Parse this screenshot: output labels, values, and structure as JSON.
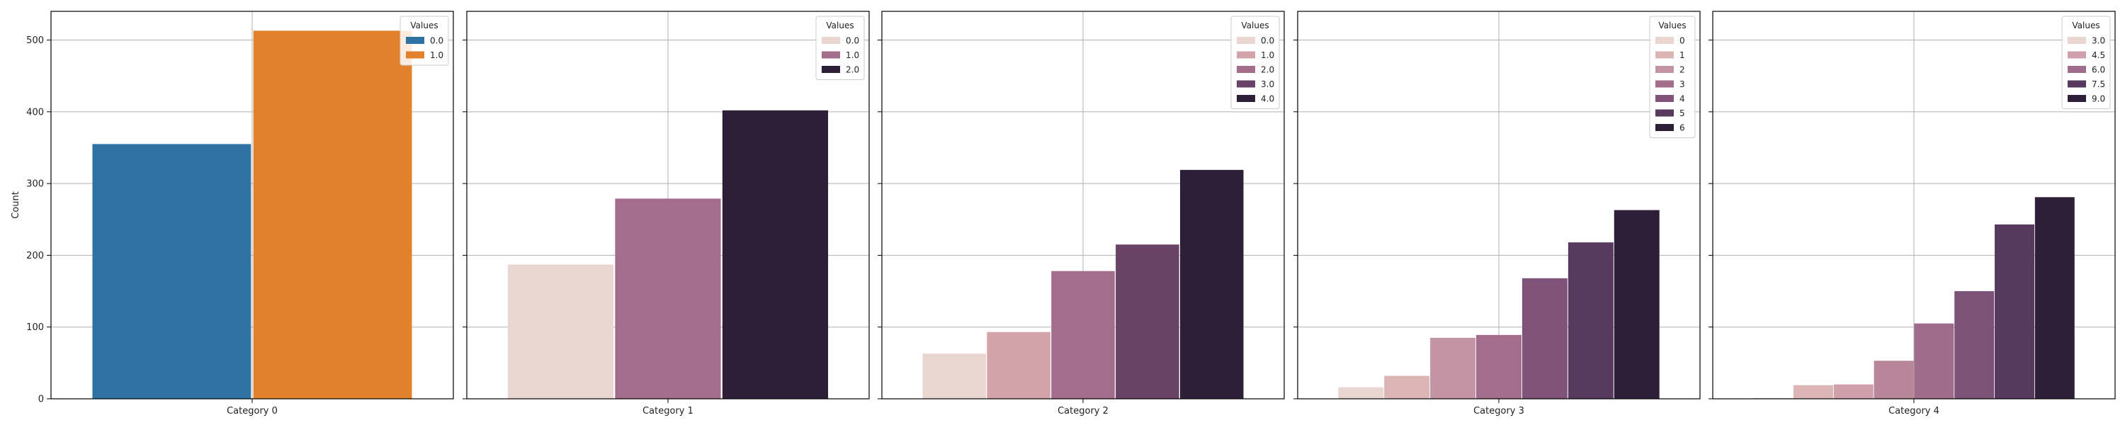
{
  "chart_data": [
    {
      "type": "bar",
      "xlabel": "",
      "ylabel": "Count",
      "ylim": [
        0,
        540
      ],
      "yticks": [
        0,
        100,
        200,
        300,
        400,
        500
      ],
      "grid": true,
      "category": "Category 0",
      "legend": {
        "title": "Values",
        "placement": "top-right"
      },
      "series": [
        {
          "name": "0.0",
          "value": 355,
          "color": "#2e71a3"
        },
        {
          "name": "1.0",
          "value": 513,
          "color": "#e1812c"
        }
      ]
    },
    {
      "type": "bar",
      "xlabel": "",
      "ylabel": "",
      "ylim": [
        0,
        540
      ],
      "grid": true,
      "category": "Category 1",
      "legend": {
        "title": "Values",
        "placement": "top-right"
      },
      "series": [
        {
          "name": "0.0",
          "value": 187,
          "color": "#ead6d1"
        },
        {
          "name": "1.0",
          "value": 279,
          "color": "#a36d8b"
        },
        {
          "name": "2.0",
          "value": 402,
          "color": "#2e1f38"
        }
      ]
    },
    {
      "type": "bar",
      "xlabel": "",
      "ylabel": "",
      "ylim": [
        0,
        540
      ],
      "grid": true,
      "category": "Category 2",
      "legend": {
        "title": "Values",
        "placement": "top-right"
      },
      "series": [
        {
          "name": "0.0",
          "value": 63,
          "color": "#ead6d1"
        },
        {
          "name": "1.0",
          "value": 93,
          "color": "#d3a3aa"
        },
        {
          "name": "2.0",
          "value": 178,
          "color": "#a36d8b"
        },
        {
          "name": "3.0",
          "value": 215,
          "color": "#6a4268"
        },
        {
          "name": "4.0",
          "value": 319,
          "color": "#2e1f38"
        }
      ]
    },
    {
      "type": "bar",
      "xlabel": "",
      "ylabel": "",
      "ylim": [
        0,
        540
      ],
      "grid": true,
      "category": "Category 3",
      "legend": {
        "title": "Values",
        "placement": "top-right"
      },
      "series": [
        {
          "name": "0",
          "value": 16,
          "color": "#ead6d1"
        },
        {
          "name": "1",
          "value": 32,
          "color": "#dbb4b4"
        },
        {
          "name": "2",
          "value": 85,
          "color": "#c394a3"
        },
        {
          "name": "3",
          "value": 89,
          "color": "#a36d8b"
        },
        {
          "name": "4",
          "value": 168,
          "color": "#7f537a"
        },
        {
          "name": "5",
          "value": 218,
          "color": "#573a5e"
        },
        {
          "name": "6",
          "value": 263,
          "color": "#2e1f38"
        }
      ]
    },
    {
      "type": "bar",
      "xlabel": "",
      "ylabel": "",
      "ylim": [
        0,
        540
      ],
      "grid": true,
      "category": "Category 4",
      "legend": {
        "title": "Values",
        "placement": "top-right"
      },
      "series": [
        {
          "name": "3.0",
          "value": 1,
          "color": "#ead6d1"
        },
        {
          "name": "",
          "value": 19,
          "color": "#dbb4b4"
        },
        {
          "name": "4.5",
          "value": 20,
          "color": "#cf9fab"
        },
        {
          "name": "",
          "value": 53,
          "color": "#b98599"
        },
        {
          "name": "6.0",
          "value": 105,
          "color": "#a06c8b"
        },
        {
          "name": "",
          "value": 150,
          "color": "#7c5279"
        },
        {
          "name": "7.5",
          "value": 243,
          "color": "#553a5e"
        },
        {
          "name": "9.0",
          "value": 281,
          "color": "#2e1f38"
        }
      ]
    }
  ]
}
